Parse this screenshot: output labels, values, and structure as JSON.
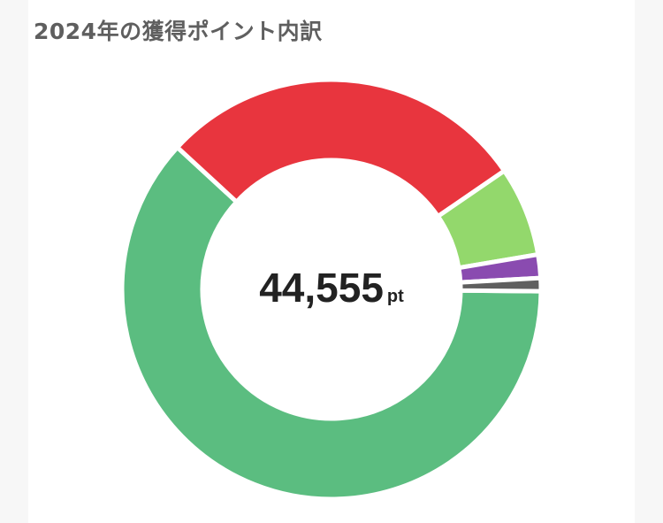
{
  "title": "2024年の獲得ポイント内訳",
  "total": {
    "value": "44,555",
    "unit": "pt"
  },
  "chart_data": {
    "type": "pie",
    "variant": "doughnut",
    "title": "2024年の獲得ポイント内訳",
    "start_angle_deg": 90.5,
    "direction": "clockwise",
    "values_percent": [
      61.7,
      28.6,
      6.9,
      1.8,
      1.0
    ],
    "colors": [
      "#5bbd80",
      "#e8353e",
      "#93d86c",
      "#8a4bb0",
      "#5f5f5f"
    ],
    "center_label": "44,555 pt",
    "legend": "none"
  }
}
